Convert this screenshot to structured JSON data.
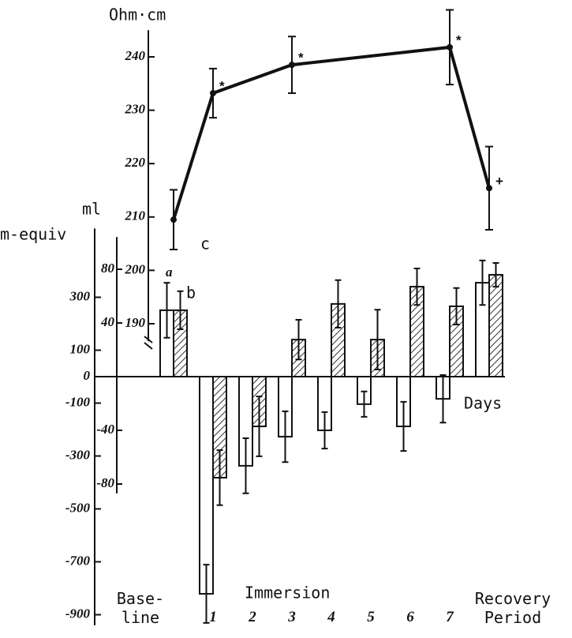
{
  "chart_data": {
    "type": "bar",
    "y2_label": "Ohm·cm",
    "y_label": "ml",
    "y3_label": "m-equiv",
    "x_label": "Days",
    "group_label": "Immersion",
    "categories": [
      "Base-\nline",
      "1",
      "2",
      "3",
      "4",
      "5",
      "6",
      "7",
      "Recovery\nPeriod"
    ],
    "ylim": [
      -940,
      560
    ],
    "yticks": [
      300,
      100,
      0,
      -100,
      -300,
      -500,
      -700,
      -900
    ],
    "y3lim": [
      -87,
      104
    ],
    "y3ticks": [
      80,
      40,
      -40,
      -80
    ],
    "y2lim": [
      185,
      245
    ],
    "y2ticks": [
      240,
      230,
      220,
      210,
      200,
      190
    ],
    "series": [
      {
        "name": "a",
        "color": "#ffffff",
        "values": [
          251,
          -821,
          -337,
          -227,
          -203,
          -104,
          -188,
          -84,
          355
        ],
        "errors": [
          104,
          110,
          104,
          96,
          69,
          48,
          93,
          90,
          84
        ]
      },
      {
        "name": "b",
        "color": "#333333",
        "values": [
          251,
          -382,
          -188,
          140,
          275,
          140,
          340,
          266,
          385
        ],
        "errors": [
          72,
          104,
          113,
          75,
          90,
          113,
          69,
          69,
          45
        ]
      },
      {
        "name": "c",
        "type": "line",
        "axis": "y2",
        "color": "#111111",
        "values": [
          209.5,
          233.2,
          null,
          238.5,
          null,
          null,
          null,
          241.8,
          215.4
        ],
        "errors": [
          5.6,
          4.6,
          null,
          5.3,
          null,
          null,
          null,
          7,
          7.8
        ],
        "markers": [
          null,
          "*",
          null,
          "*",
          null,
          null,
          null,
          "*",
          "+"
        ]
      }
    ]
  }
}
